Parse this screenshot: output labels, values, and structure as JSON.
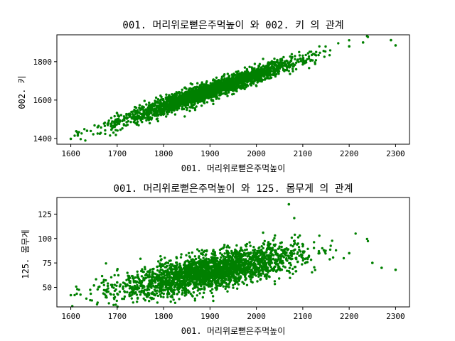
{
  "chart_data": [
    {
      "type": "scatter",
      "title": "001. 머리위로뻗은주먹높이  와 002. 키 의 관계",
      "xlabel": "001. 머리위로뻗은주먹높이",
      "ylabel": "002. 키",
      "xlim": [
        1570,
        2330
      ],
      "ylim": [
        1370,
        1940
      ],
      "xticks": [
        1600,
        1700,
        1800,
        1900,
        2000,
        2100,
        2200,
        2300
      ],
      "yticks": [
        1400,
        1600,
        1800
      ],
      "grid": false,
      "color": "#008000",
      "trend": {
        "x_mean": 1900,
        "x_sd": 95,
        "x_min": 1600,
        "x_max": 2300,
        "slope": 0.82,
        "intercept": 90,
        "noise_sd": 22
      },
      "sample_points": [
        {
          "x": 1600,
          "y": 1398
        },
        {
          "x": 1615,
          "y": 1415
        },
        {
          "x": 1635,
          "y": 1440
        },
        {
          "x": 1700,
          "y": 1500
        },
        {
          "x": 1800,
          "y": 1580
        },
        {
          "x": 1900,
          "y": 1650
        },
        {
          "x": 2000,
          "y": 1735
        },
        {
          "x": 2100,
          "y": 1810
        },
        {
          "x": 2200,
          "y": 1880
        },
        {
          "x": 2230,
          "y": 1900
        },
        {
          "x": 2290,
          "y": 1912
        },
        {
          "x": 2300,
          "y": 1885
        }
      ]
    },
    {
      "type": "scatter",
      "title": "001. 머리위로뻗은주먹높이  와 125. 몸무게 의 관계",
      "xlabel": "001. 머리위로뻗은주먹높이",
      "ylabel": "125. 몸무게",
      "xlim": [
        1570,
        2330
      ],
      "ylim": [
        30,
        142
      ],
      "xticks": [
        1600,
        1700,
        1800,
        1900,
        2000,
        2100,
        2200,
        2300
      ],
      "yticks": [
        50,
        75,
        100,
        125
      ],
      "grid": false,
      "color": "#008000",
      "trend": {
        "x_mean": 1900,
        "x_sd": 95,
        "x_min": 1600,
        "x_max": 2300,
        "slope": 0.09,
        "intercept": -105,
        "noise_sd": 9
      },
      "sample_points": [
        {
          "x": 1600,
          "y": 42
        },
        {
          "x": 1650,
          "y": 52
        },
        {
          "x": 1700,
          "y": 55
        },
        {
          "x": 1800,
          "y": 60
        },
        {
          "x": 1900,
          "y": 65
        },
        {
          "x": 2000,
          "y": 70
        },
        {
          "x": 2070,
          "y": 135
        },
        {
          "x": 2100,
          "y": 80
        },
        {
          "x": 2200,
          "y": 85
        },
        {
          "x": 2250,
          "y": 75
        },
        {
          "x": 2270,
          "y": 70
        },
        {
          "x": 2300,
          "y": 68
        }
      ]
    }
  ]
}
